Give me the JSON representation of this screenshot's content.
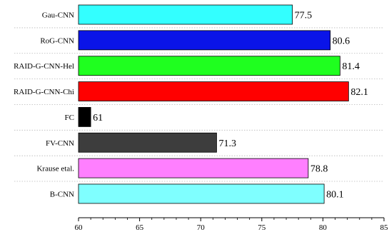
{
  "chart_data": {
    "type": "bar",
    "orientation": "horizontal",
    "title": "",
    "xlabel": "",
    "ylabel": "",
    "xlim": [
      60,
      85
    ],
    "xticks": [
      60,
      65,
      70,
      75,
      80,
      85
    ],
    "grid": "horizontal dotted",
    "legend": "none",
    "categories": [
      "Gau-CNN",
      "RoG-CNN",
      "RAID-G-CNN-Hel",
      "RAID-G-CNN-Chi",
      "FC",
      "FV-CNN",
      "Krause etal.",
      "B-CNN"
    ],
    "values": [
      77.5,
      80.6,
      81.4,
      82.1,
      61,
      71.3,
      78.8,
      80.1
    ],
    "value_labels": [
      "77.5",
      "80.6",
      "81.4",
      "82.1",
      "61",
      "71.3",
      "78.8",
      "80.1"
    ],
    "colors": [
      "#33ffff",
      "#0a14e8",
      "#1fff1f",
      "#ff0000",
      "#000000",
      "#3d3d3d",
      "#ff7fff",
      "#7fffff"
    ]
  }
}
